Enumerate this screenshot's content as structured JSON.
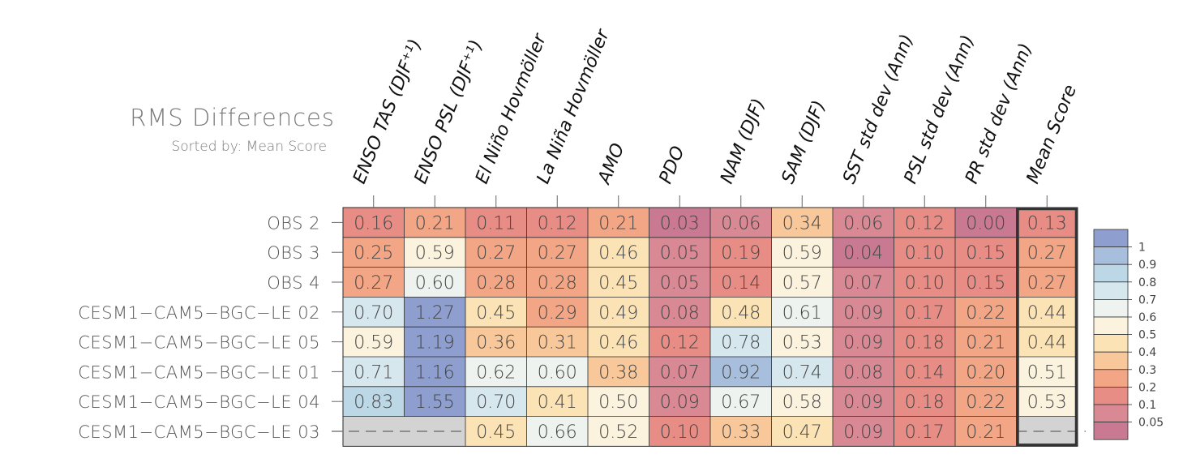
{
  "chart_data": {
    "type": "heatmap",
    "title": "RMS Differences",
    "subtitle": "Sorted by: Mean Score",
    "columns": [
      "ENSO TAS (DJF⁺¹)",
      "ENSO PSL (DJF⁺¹)",
      "El Niño Hovmöller",
      "La Niña Hovmöller",
      "AMO",
      "PDO",
      "NAM (DJF)",
      "SAM (DJF)",
      "SST std dev (Ann)",
      "PSL std dev (Ann)",
      "PR std dev (Ann)",
      "Mean Score"
    ],
    "rows": [
      "OBS 2",
      "OBS 3",
      "OBS 4",
      "CESM1−CAM5−BGC−LE 02",
      "CESM1−CAM5−BGC−LE 05",
      "CESM1−CAM5−BGC−LE 01",
      "CESM1−CAM5−BGC−LE 04",
      "CESM1−CAM5−BGC−LE 03"
    ],
    "values": [
      [
        0.16,
        0.21,
        0.11,
        0.12,
        0.21,
        0.03,
        0.06,
        0.34,
        0.06,
        0.12,
        0.0,
        0.13
      ],
      [
        0.25,
        0.59,
        0.27,
        0.27,
        0.46,
        0.05,
        0.19,
        0.59,
        0.04,
        0.1,
        0.15,
        0.27
      ],
      [
        0.27,
        0.6,
        0.28,
        0.28,
        0.45,
        0.05,
        0.14,
        0.57,
        0.07,
        0.1,
        0.15,
        0.27
      ],
      [
        0.7,
        1.27,
        0.45,
        0.29,
        0.49,
        0.08,
        0.48,
        0.61,
        0.09,
        0.17,
        0.22,
        0.44
      ],
      [
        0.59,
        1.19,
        0.36,
        0.31,
        0.46,
        0.12,
        0.78,
        0.53,
        0.09,
        0.18,
        0.21,
        0.44
      ],
      [
        0.71,
        1.16,
        0.62,
        0.6,
        0.38,
        0.07,
        0.92,
        0.74,
        0.08,
        0.14,
        0.2,
        0.51
      ],
      [
        0.83,
        1.55,
        0.7,
        0.41,
        0.5,
        0.09,
        0.67,
        0.58,
        0.09,
        0.18,
        0.22,
        0.53
      ],
      [
        null,
        null,
        0.45,
        0.66,
        0.52,
        0.1,
        0.33,
        0.47,
        0.09,
        0.17,
        0.21,
        null
      ]
    ],
    "missing_label": "---",
    "highlighted_column": "Mean Score",
    "colorbar": {
      "labels": [
        "1",
        "0.9",
        "0.8",
        "0.7",
        "0.6",
        "0.5",
        "0.4",
        "0.3",
        "0.2",
        "0.1",
        "0.05"
      ],
      "colors": [
        "#8e9ece",
        "#a7bedd",
        "#bcd7e6",
        "#d6e8ee",
        "#eef3f0",
        "#fbf3dd",
        "#fbe3b5",
        "#f8c89a",
        "#f2a685",
        "#e88d85",
        "#d88994",
        "#c97a92"
      ]
    },
    "missing_color": "#d3d3d3"
  }
}
